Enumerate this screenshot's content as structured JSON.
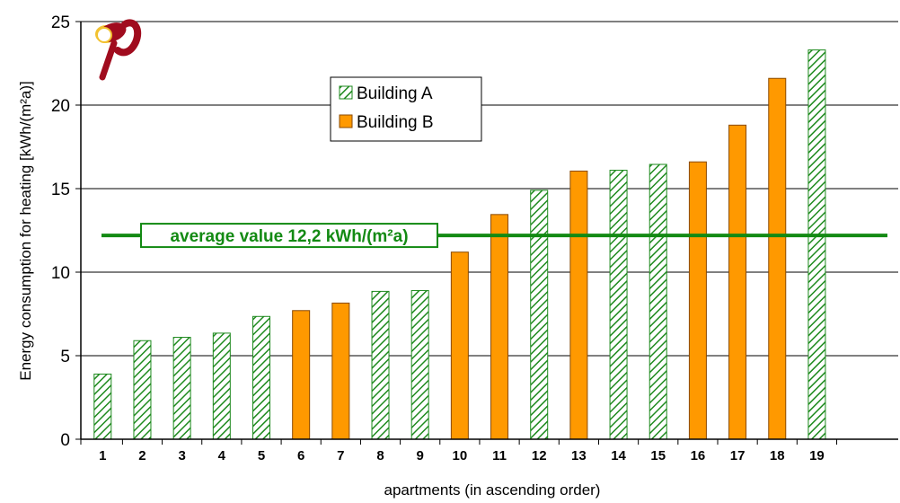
{
  "chart_data": {
    "type": "bar",
    "title": "",
    "xlabel": "apartments  (in ascending order)",
    "ylabel": "Energy  consumption for heating   [kWh/(m²a)]",
    "ylim": [
      0,
      25
    ],
    "yticks": [
      0,
      5,
      10,
      15,
      20,
      25
    ],
    "categories": [
      "1",
      "2",
      "3",
      "4",
      "5",
      "6",
      "7",
      "8",
      "9",
      "10",
      "11",
      "12",
      "13",
      "14",
      "15",
      "16",
      "17",
      "18",
      "19"
    ],
    "values": [
      3.9,
      5.9,
      6.1,
      6.35,
      7.35,
      7.7,
      8.15,
      8.85,
      8.9,
      11.2,
      13.45,
      14.9,
      16.05,
      16.1,
      16.45,
      16.6,
      18.8,
      21.6,
      23.3
    ],
    "building": [
      "A",
      "A",
      "A",
      "A",
      "A",
      "B",
      "B",
      "A",
      "A",
      "B",
      "B",
      "A",
      "B",
      "A",
      "A",
      "B",
      "B",
      "B",
      "A"
    ],
    "series": [
      {
        "name": "Building A",
        "key": "A",
        "pattern": "green-diagonal-hatch",
        "color": "#1e8a1e"
      },
      {
        "name": "Building B",
        "key": "B",
        "fill": "#ff9900"
      }
    ],
    "grid": true,
    "legend_position": "upper-center",
    "reference_line": {
      "value": 12.2,
      "label": "average value 12,2 kWh/(m²a)",
      "color": "#138a13"
    }
  }
}
